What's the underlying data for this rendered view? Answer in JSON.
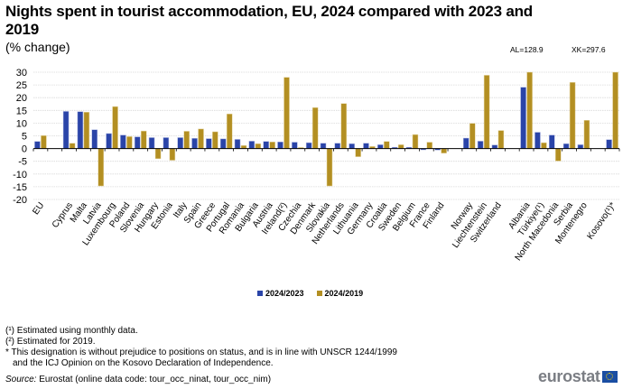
{
  "header": {
    "title": "Nights spent in tourist accommodation, EU, 2024 compared with 2023 and 2019",
    "subtitle": "(% change)"
  },
  "annotations": [
    {
      "text": "AL=128.9",
      "category": "Albania"
    },
    {
      "text": "XK=297.6",
      "category": "Kosovo(¹)*"
    }
  ],
  "legend": [
    {
      "label": "2024/2023",
      "color": "#2a44a8"
    },
    {
      "label": "2024/2019",
      "color": "#b38f22"
    }
  ],
  "footnotes": [
    "(¹) Estimated using monthly data.",
    "(²) Estimated for 2019.",
    "* This designation is without prejudice to positions on status, and is in line with UNSCR 1244/1999",
    "and the ICJ Opinion on the Kosovo Declaration of Independence."
  ],
  "source": {
    "label": "Source:",
    "text": " Eurostat (online data code: tour_occ_ninat, tour_occ_nim)"
  },
  "logo": {
    "text": "eurostat"
  },
  "chart_data": {
    "type": "bar",
    "title": "Nights spent in tourist accommodation, EU, 2024 compared with 2023 and 2019",
    "subtitle": "(% change)",
    "xlabel": "",
    "ylabel": "",
    "ylim": [
      -20,
      30
    ],
    "yticks": [
      30,
      25,
      20,
      15,
      10,
      5,
      0,
      -5,
      -10,
      -15,
      -20
    ],
    "grid": true,
    "legend_position": "bottom",
    "categories": [
      "EU",
      "",
      "Cyprus",
      "Malta",
      "Latvia",
      "Luxembourg",
      "Poland",
      "Slovenia",
      "Hungary",
      "Estonia",
      "Italy",
      "Spain",
      "Greece",
      "Portugal",
      "Romania",
      "Bulgaria",
      "Austria",
      "Ireland(²)",
      "Czechia",
      "Denmark",
      "Slovakia",
      "Netherlands",
      "Lithuania",
      "Germany",
      "Croatia",
      "Sweden",
      "Belgium",
      "France",
      "Finland",
      "",
      "Norway",
      "Liechtenstein",
      "Switzerland",
      "",
      "Albania",
      "Türkiye(¹)",
      "North Macedonia",
      "Serbia",
      "Montenegro",
      "",
      "Kosovo(¹)*"
    ],
    "series": [
      {
        "name": "2024/2023",
        "color": "#2a44a8",
        "values": [
          2.8,
          null,
          14.6,
          14.5,
          7.4,
          5.9,
          5.3,
          4.6,
          4.3,
          4.3,
          4.3,
          4.0,
          3.9,
          3.8,
          3.6,
          2.9,
          2.8,
          2.6,
          2.5,
          2.3,
          2.1,
          2.1,
          1.9,
          2.1,
          1.5,
          0.5,
          0.5,
          -0.5,
          -0.6,
          null,
          4.1,
          2.9,
          1.4,
          null,
          24.1,
          6.4,
          5.3,
          1.9,
          1.5,
          null,
          3.5
        ]
      },
      {
        "name": "2024/2019",
        "color": "#b38f22",
        "values": [
          5.1,
          null,
          2.1,
          14.3,
          -14.7,
          16.5,
          4.7,
          6.9,
          -4.0,
          -4.6,
          6.8,
          7.7,
          6.6,
          13.6,
          1.2,
          1.9,
          2.6,
          28.0,
          0.4,
          16.1,
          -14.7,
          17.7,
          -3.2,
          0.8,
          2.8,
          1.5,
          5.5,
          2.5,
          -1.8,
          null,
          9.9,
          28.8,
          7.1,
          null,
          128.9,
          2.3,
          -4.9,
          26.0,
          11.1,
          null,
          297.6
        ]
      }
    ]
  }
}
